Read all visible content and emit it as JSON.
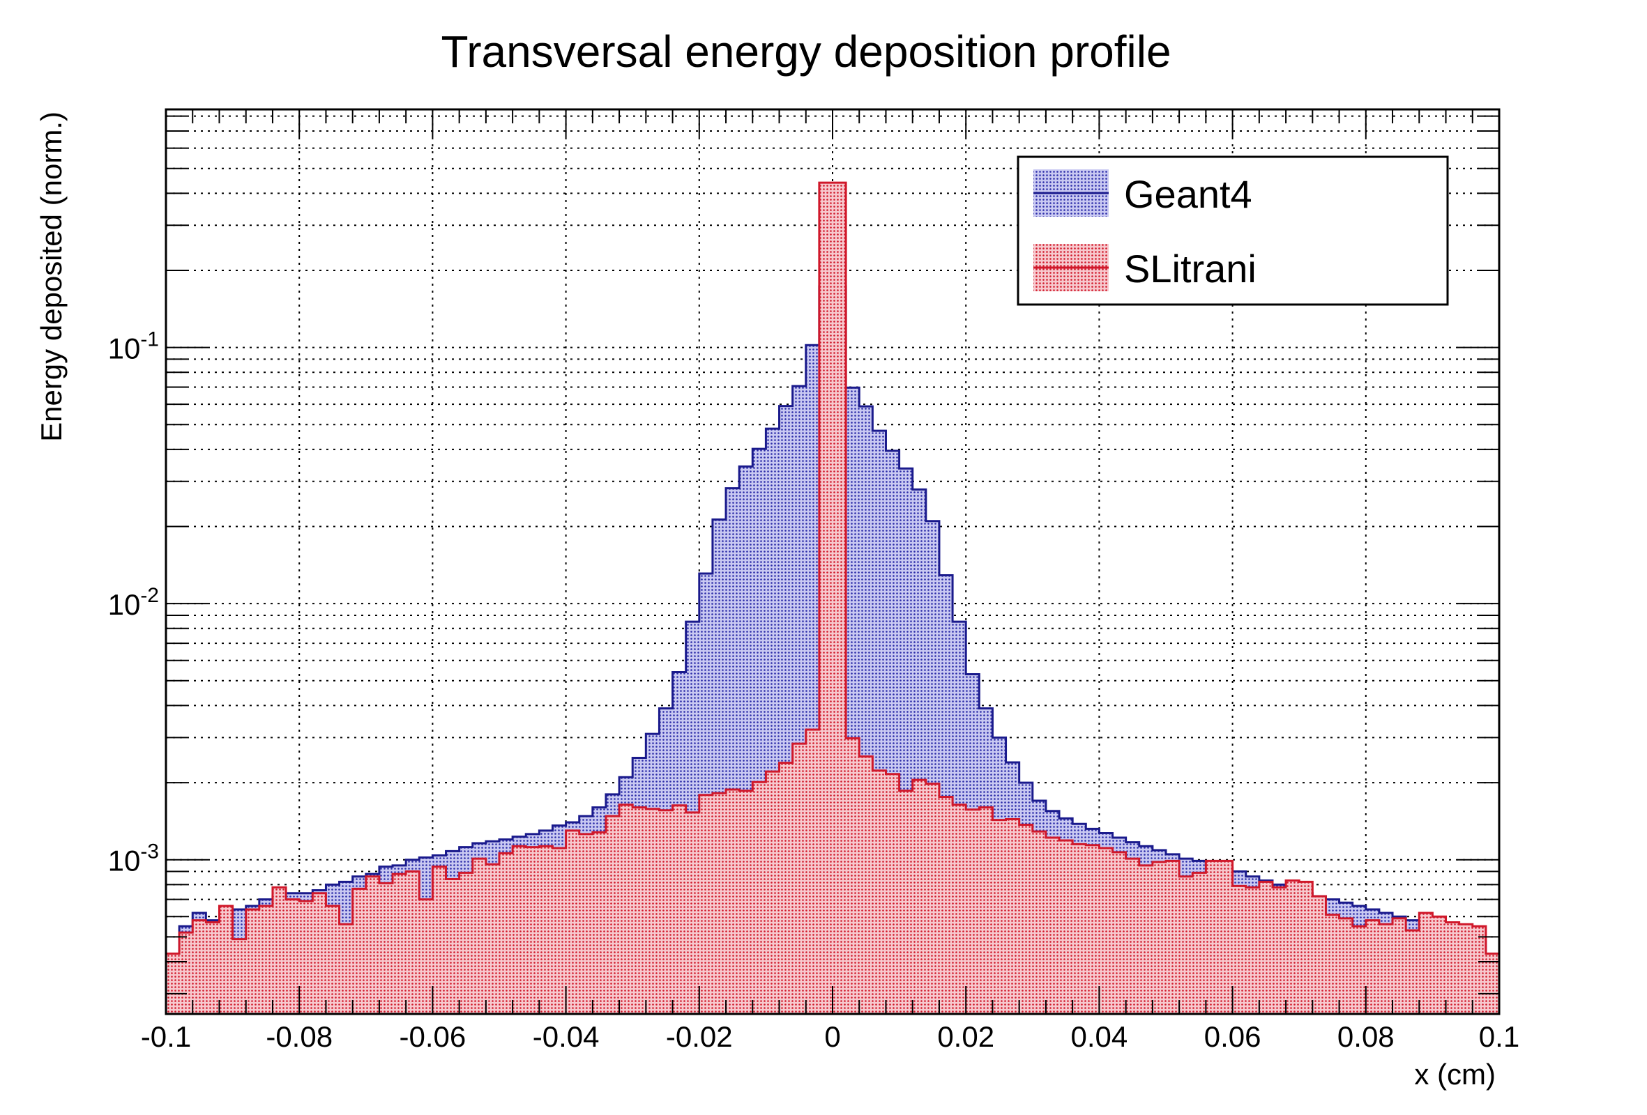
{
  "chart_data": {
    "type": "histogram-step",
    "title": "Transversal energy deposition profile",
    "xlabel": "x (cm)",
    "ylabel": "Energy deposited (norm.)",
    "xlim": [
      -0.1,
      0.1
    ],
    "ylim": [
      0.00025,
      0.85
    ],
    "yscale": "log",
    "grid": true,
    "legend_position": "top-right",
    "x_ticks": [
      -0.1,
      -0.08,
      -0.06,
      -0.04,
      -0.02,
      0,
      0.02,
      0.04,
      0.06,
      0.08,
      0.1
    ],
    "x_tick_labels": [
      "-0.1",
      "-0.08",
      "-0.06",
      "-0.04",
      "-0.02",
      "0",
      "0.02",
      "0.04",
      "0.06",
      "0.08",
      "0.1"
    ],
    "y_tick_labels": [
      {
        "value": 0.1,
        "base": "10",
        "exp": "-1"
      },
      {
        "value": 0.01,
        "base": "10",
        "exp": "-2"
      },
      {
        "value": 0.001,
        "base": "10",
        "exp": "-3"
      }
    ],
    "bin_edges": {
      "start": -0.1,
      "width": 0.002,
      "count": 100
    },
    "series": [
      {
        "name": "Geant4",
        "color": "#1a1a8c",
        "fill": "#4d4dd6",
        "values": [
          0.00037,
          0.00055,
          0.00062,
          0.00058,
          0.0006,
          0.00064,
          0.00066,
          0.0007,
          0.00072,
          0.00074,
          0.00074,
          0.00076,
          0.0008,
          0.00082,
          0.00086,
          0.00088,
          0.00094,
          0.00095,
          0.001,
          0.00102,
          0.00104,
          0.00108,
          0.00112,
          0.00116,
          0.00118,
          0.0012,
          0.00123,
          0.00126,
          0.0013,
          0.00136,
          0.0014,
          0.00148,
          0.0016,
          0.0018,
          0.0021,
          0.0025,
          0.0031,
          0.0039,
          0.0054,
          0.0085,
          0.0131,
          0.0213,
          0.0282,
          0.0343,
          0.0402,
          0.0482,
          0.0591,
          0.0707,
          0.1021,
          0.1731,
          0.1731,
          0.0697,
          0.0589,
          0.0473,
          0.0395,
          0.0337,
          0.0279,
          0.021,
          0.0129,
          0.0085,
          0.0053,
          0.0039,
          0.003,
          0.0024,
          0.002,
          0.0017,
          0.00155,
          0.00145,
          0.00138,
          0.00132,
          0.00127,
          0.00122,
          0.00117,
          0.00113,
          0.00109,
          0.00105,
          0.00101,
          0.00099,
          0.00096,
          0.00093,
          0.0009,
          0.00086,
          0.00083,
          0.0008,
          0.00077,
          0.00074,
          0.00072,
          0.0007,
          0.00068,
          0.00066,
          0.00064,
          0.00062,
          0.0006,
          0.00058,
          0.00056,
          0.00054,
          0.00052,
          0.0005,
          0.00048,
          0.00037
        ]
      },
      {
        "name": "SLitrani",
        "color": "#d0182a",
        "fill": "#e84a5a",
        "values": [
          0.00043,
          0.00052,
          0.00058,
          0.00057,
          0.00066,
          0.00049,
          0.00064,
          0.00066,
          0.00078,
          0.0007,
          0.00069,
          0.00074,
          0.00066,
          0.00056,
          0.00077,
          0.00086,
          0.00081,
          0.00088,
          0.0009,
          0.0007,
          0.00094,
          0.00084,
          0.00089,
          0.00101,
          0.00096,
          0.00106,
          0.00113,
          0.00112,
          0.00113,
          0.00111,
          0.0013,
          0.00126,
          0.00128,
          0.00148,
          0.00164,
          0.0016,
          0.00158,
          0.00156,
          0.00163,
          0.00153,
          0.00179,
          0.00182,
          0.00188,
          0.00186,
          0.00201,
          0.00221,
          0.00239,
          0.00284,
          0.00322,
          0.44,
          0.44,
          0.00298,
          0.00253,
          0.00223,
          0.00216,
          0.00186,
          0.00205,
          0.00198,
          0.00176,
          0.00164,
          0.00157,
          0.0016,
          0.00143,
          0.00144,
          0.00137,
          0.00129,
          0.00122,
          0.00119,
          0.00115,
          0.00114,
          0.00111,
          0.00107,
          0.00101,
          0.00095,
          0.00098,
          0.00099,
          0.00086,
          0.00089,
          0.00099,
          0.00099,
          0.00079,
          0.00078,
          0.00082,
          0.00078,
          0.00083,
          0.00082,
          0.00072,
          0.00061,
          0.00059,
          0.00055,
          0.00058,
          0.00056,
          0.00059,
          0.00053,
          0.00062,
          0.0006,
          0.00057,
          0.00056,
          0.00055,
          0.00043
        ]
      }
    ]
  }
}
